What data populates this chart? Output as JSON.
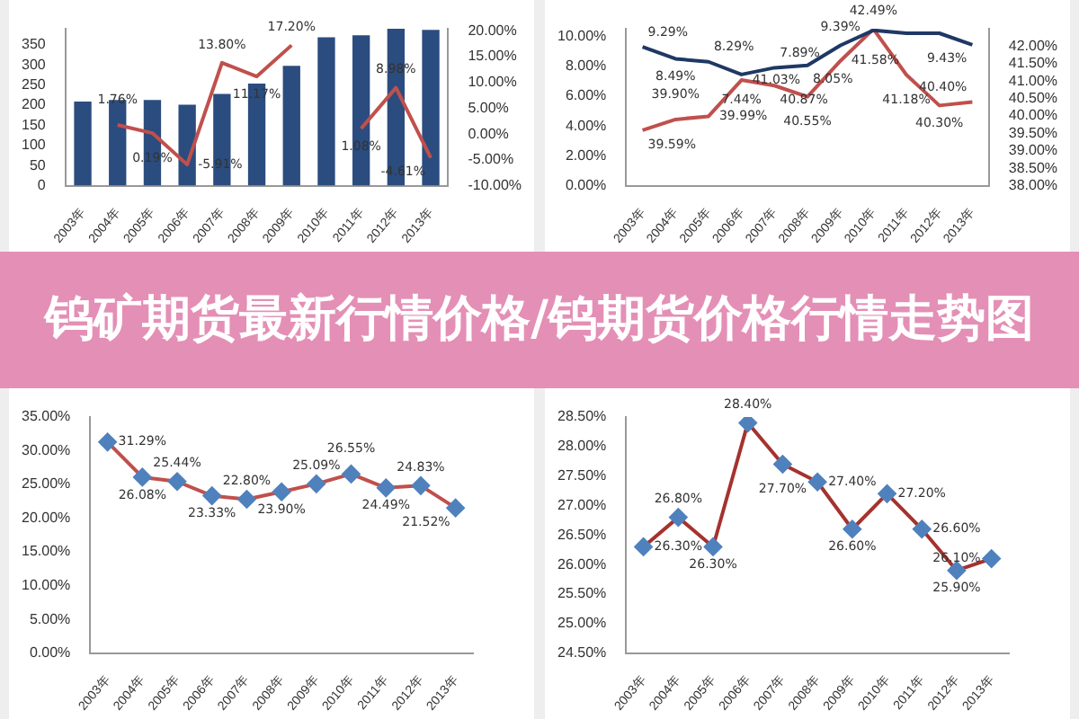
{
  "chart_data": [
    {
      "type": "bar",
      "categories": [
        "2003年",
        "2004年",
        "2005年",
        "2006年",
        "2007年",
        "2008年",
        "2009年",
        "2010年",
        "2011年",
        "2012年",
        "2013年"
      ],
      "series": [
        {
          "type": "bar",
          "color": "#2b4c7e",
          "values": [
            209,
            213,
            213,
            201,
            228,
            254,
            298,
            369,
            374,
            390,
            387
          ]
        },
        {
          "type": "line",
          "axis": "y2",
          "color": "#c0504d",
          "values": [
            null,
            1.76,
            0.19,
            -5.91,
            13.8,
            11.17,
            17.2,
            null,
            1.08,
            8.98,
            -4.61
          ],
          "value_labels": [
            null,
            "1.76%",
            "0.19%",
            "-5.91%",
            "13.80%",
            "11.17%",
            "17.20%",
            null,
            "1.08%",
            "8.98%",
            "-4.61%"
          ]
        }
      ],
      "ylim": [
        0,
        390
      ],
      "yticks": [
        0,
        50,
        100,
        150,
        200,
        250,
        300,
        350
      ],
      "y2lim": [
        -10,
        20.4
      ],
      "y2ticks": [
        {
          "value": -10,
          "label": "-10.00%"
        },
        {
          "value": -5,
          "label": "-5.00%"
        },
        {
          "value": 0,
          "label": "0.00%"
        },
        {
          "value": 5,
          "label": "5.00%"
        },
        {
          "value": 10,
          "label": "10.00%"
        },
        {
          "value": 15,
          "label": "15.00%"
        },
        {
          "value": 20,
          "label": "20.00%"
        }
      ],
      "marker": "none"
    },
    {
      "type": "line",
      "categories": [
        "2003年",
        "2004年",
        "2005年",
        "2006年",
        "2007年",
        "2008年",
        "2009年",
        "2010年",
        "2011年",
        "2012年",
        "2013年"
      ],
      "series": [
        {
          "color": "#1f3864",
          "values": [
            9.29,
            8.49,
            8.29,
            7.44,
            7.89,
            8.05,
            9.39,
            10.4,
            10.2,
            10.2,
            9.43
          ],
          "value_labels": [
            "9.29%",
            "8.49%",
            "8.29%",
            "7.44%",
            "7.89%",
            "8.05%",
            "9.39%",
            null,
            null,
            null,
            "9.43%"
          ]
        },
        {
          "color": "#c0504d",
          "axis": "y2",
          "values": [
            39.59,
            39.9,
            39.99,
            41.03,
            40.87,
            40.55,
            41.58,
            42.49,
            41.18,
            40.3,
            40.4
          ],
          "value_labels": [
            "39.59%",
            "39.90%",
            "39.99%",
            "41.03%",
            "40.87%",
            "40.55%",
            "41.58%",
            "42.49%",
            "41.18%",
            "40.30%",
            "40.40%"
          ]
        }
      ],
      "ylim": [
        0,
        10.5
      ],
      "yticks": [
        {
          "value": 0,
          "label": "0.00%"
        },
        {
          "value": 2,
          "label": "2.00%"
        },
        {
          "value": 4,
          "label": "4.00%"
        },
        {
          "value": 6,
          "label": "6.00%"
        },
        {
          "value": 8,
          "label": "8.00%"
        },
        {
          "value": 10,
          "label": "10.00%"
        }
      ],
      "y2lim": [
        38,
        42.5
      ],
      "y2ticks": [
        {
          "value": 38,
          "label": "38.00%"
        },
        {
          "value": 38.5,
          "label": "38.50%"
        },
        {
          "value": 39,
          "label": "39.00%"
        },
        {
          "value": 39.5,
          "label": "39.50%"
        },
        {
          "value": 40,
          "label": "40.00%"
        },
        {
          "value": 40.5,
          "label": "40.50%"
        },
        {
          "value": 41,
          "label": "41.00%"
        },
        {
          "value": 41.5,
          "label": "41.50%"
        },
        {
          "value": 42,
          "label": "42.00%"
        }
      ],
      "marker": "none"
    },
    {
      "type": "other",
      "title": "钨矿期货最新行情价格/钨期货价格行情走势图"
    },
    {
      "type": "line",
      "categories": [
        "2003年",
        "2004年",
        "2005年",
        "2006年",
        "2007年",
        "2008年",
        "2009年",
        "2010年",
        "2011年",
        "2012年",
        "2013年"
      ],
      "series": [
        {
          "color": "#c0504d",
          "colors": [
            "#4f81bd",
            "#4f81bd",
            "#4f81bd",
            "#4f81bd",
            "#4f81bd",
            "#4f81bd",
            "#4f81bd",
            "#4f81bd",
            "#4f81bd",
            "#4f81bd",
            "#4f81bd"
          ],
          "values": [
            31.29,
            26.08,
            25.44,
            23.33,
            22.8,
            23.9,
            25.09,
            26.55,
            24.49,
            24.83,
            21.52
          ],
          "value_labels": [
            "31.29%",
            "26.08%",
            "25.44%",
            "23.33%",
            "22.80%",
            "23.90%",
            "25.09%",
            "26.55%",
            "24.49%",
            "24.83%",
            "21.52%"
          ]
        }
      ],
      "ylim": [
        0,
        35
      ],
      "yticks": [
        {
          "value": 0,
          "label": "0.00%"
        },
        {
          "value": 5,
          "label": "5.00%"
        },
        {
          "value": 10,
          "label": "10.00%"
        },
        {
          "value": 15,
          "label": "15.00%"
        },
        {
          "value": 20,
          "label": "20.00%"
        },
        {
          "value": 25,
          "label": "25.00%"
        },
        {
          "value": 30,
          "label": "30.00%"
        },
        {
          "value": 35,
          "label": "35.00%"
        }
      ],
      "marker": "diamond"
    },
    {
      "type": "line",
      "categories": [
        "2003年",
        "2004年",
        "2005年",
        "2006年",
        "2007年",
        "2008年",
        "2009年",
        "2010年",
        "2011年",
        "2012年",
        "2013年"
      ],
      "series": [
        {
          "color": "#a5322e",
          "colors": [
            "#4f81bd",
            "#4f81bd",
            "#4f81bd",
            "#4f81bd",
            "#4f81bd",
            "#4f81bd",
            "#4f81bd",
            "#4f81bd",
            "#4f81bd",
            "#4f81bd",
            "#4f81bd"
          ],
          "values": [
            26.3,
            26.8,
            26.3,
            28.4,
            27.7,
            27.4,
            26.6,
            27.2,
            26.6,
            25.9,
            26.1
          ],
          "value_labels": [
            "26.30%",
            "26.80%",
            "26.30%",
            "28.40%",
            "27.70%",
            "27.40%",
            "26.60%",
            "27.20%",
            "26.60%",
            "25.90%",
            "26.10%"
          ]
        }
      ],
      "ylim": [
        24.5,
        28.5
      ],
      "yticks": [
        {
          "value": 24.5,
          "label": "24.50%"
        },
        {
          "value": 25,
          "label": "25.00%"
        },
        {
          "value": 25.5,
          "label": "25.50%"
        },
        {
          "value": 26,
          "label": "26.00%"
        },
        {
          "value": 26.5,
          "label": "26.50%"
        },
        {
          "value": 27,
          "label": "27.00%"
        },
        {
          "value": 27.5,
          "label": "27.50%"
        },
        {
          "value": 28,
          "label": "28.00%"
        },
        {
          "value": 28.5,
          "label": "28.50%"
        }
      ],
      "marker": "diamond"
    }
  ]
}
